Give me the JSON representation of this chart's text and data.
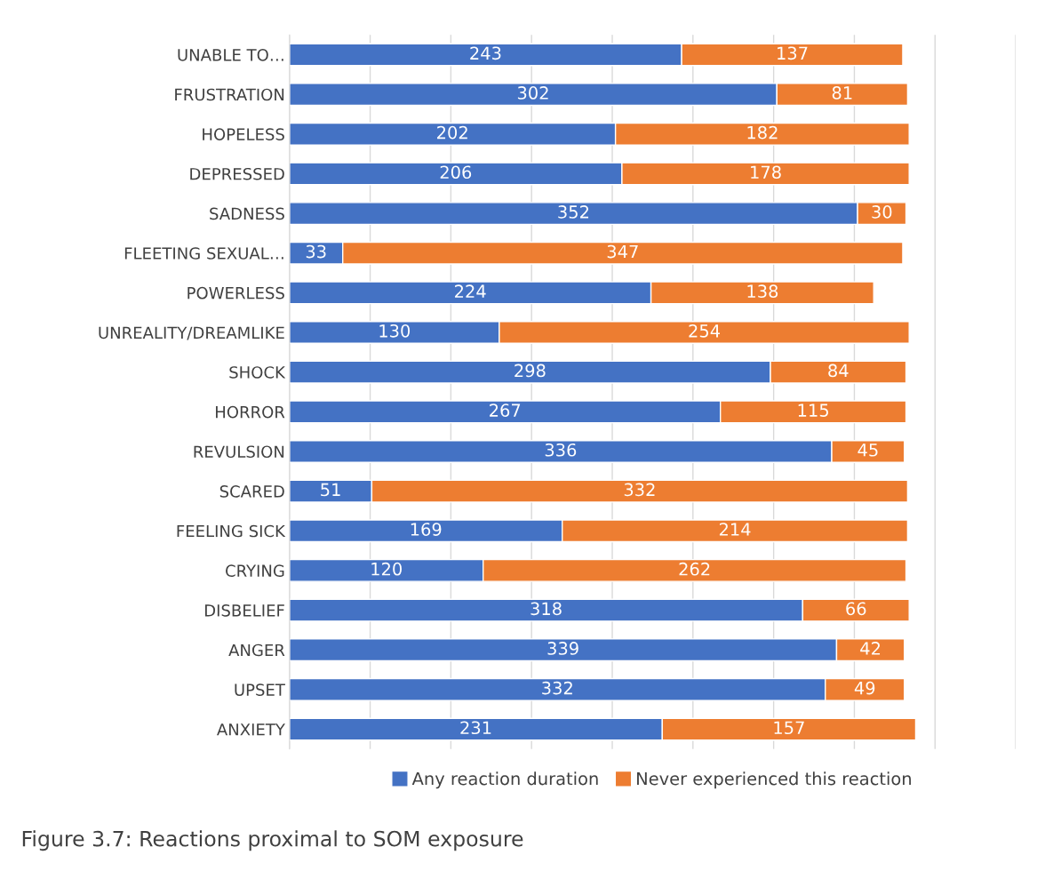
{
  "chart_data": {
    "type": "bar",
    "orientation": "horizontal",
    "stacked": true,
    "data_labels": true,
    "grid": "x",
    "legend": "bottom",
    "tick_labels": "y",
    "categories": [
      "UNABLE TO…",
      "FRUSTRATION",
      "HOPELESS",
      "DEPRESSED",
      "SADNESS",
      "FLEETING SEXUAL…",
      "POWERLESS",
      "UNREALITY/DREAMLIKE",
      "SHOCK",
      "HORROR",
      "REVULSION",
      "SCARED",
      "FEELING SICK",
      "CRYING",
      "DISBELIEF",
      "ANGER",
      "UPSET",
      "ANXIETY"
    ],
    "xlim": [
      0,
      450
    ],
    "xticks": [
      {
        "value": 0,
        "label": null
      },
      {
        "value": 50,
        "label": null
      },
      {
        "value": 100,
        "label": null
      },
      {
        "value": 150,
        "label": null
      },
      {
        "value": 200,
        "label": null
      },
      {
        "value": 250,
        "label": null
      },
      {
        "value": 300,
        "label": null
      },
      {
        "value": 350,
        "label": null
      },
      {
        "value": 400,
        "label": null
      },
      {
        "value": 450,
        "label": null
      }
    ],
    "series": [
      {
        "name": "Any reaction duration",
        "color": "#4472c4",
        "values": [
          243,
          302,
          202,
          206,
          352,
          33,
          224,
          130,
          298,
          267,
          336,
          51,
          169,
          120,
          318,
          339,
          332,
          231
        ]
      },
      {
        "name": "Never experienced this reaction",
        "color": "#ed7d31",
        "values": [
          137,
          81,
          182,
          178,
          30,
          347,
          138,
          254,
          84,
          115,
          45,
          332,
          214,
          262,
          66,
          42,
          49,
          157
        ]
      }
    ],
    "annotations": [
      "Figure 3.7: Reactions proximal to SOM exposure"
    ]
  }
}
